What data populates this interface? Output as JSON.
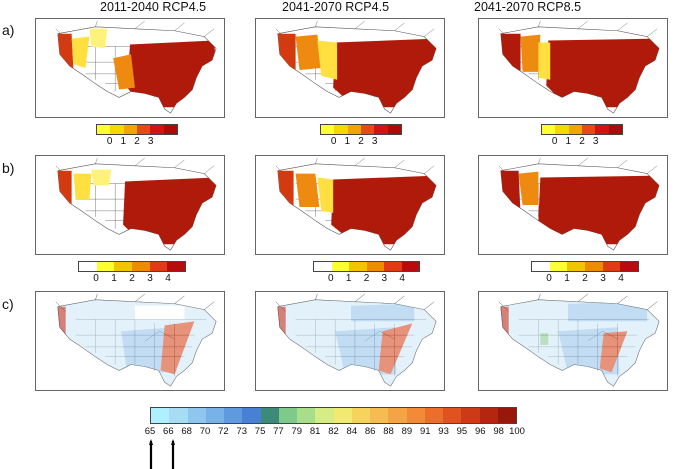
{
  "column_titles": [
    "2011-2040 RCP4.5",
    "2041-2070 RCP4.5",
    "2041-2070 RCP8.5"
  ],
  "row_labels": [
    "a)",
    "b)",
    "c)"
  ],
  "legend_a": {
    "ticks": [
      "0",
      "1",
      "2",
      "3"
    ],
    "colors": [
      "#ffff33",
      "#f5d800",
      "#f3a400",
      "#e84a14",
      "#d01414",
      "#a80c0c"
    ]
  },
  "legend_b": {
    "ticks": [
      "0",
      "1",
      "2",
      "3",
      "4"
    ],
    "colors": [
      "#ffffff",
      "#ffff33",
      "#f3c400",
      "#f08a00",
      "#e03c14",
      "#b80c0c"
    ]
  },
  "legend_c": {
    "ticks": [
      "65",
      "66",
      "68",
      "70",
      "72",
      "73",
      "75",
      "77",
      "79",
      "81",
      "82",
      "84",
      "86",
      "88",
      "89",
      "91",
      "93",
      "95",
      "96",
      "98",
      "100"
    ],
    "colors": [
      "#aef0ff",
      "#a8dcf4",
      "#8fc6ee",
      "#79b2e8",
      "#5f99df",
      "#4880d6",
      "#3d8a7a",
      "#7fc98a",
      "#a8dd8a",
      "#d6ec84",
      "#f2ea70",
      "#f6d45c",
      "#f6bc50",
      "#f4a443",
      "#f28a36",
      "#ec6e2a",
      "#e0521e",
      "#cc3a16",
      "#b4260f",
      "#9a160a"
    ]
  },
  "colors": {
    "map_dark_red": "#b01a0a",
    "map_red": "#d43a10",
    "map_orange": "#ee8a10",
    "map_yellow": "#ffe040",
    "map_light_yellow": "#fff27a",
    "map_light_blue": "#cde9f7",
    "map_mid_blue": "#8fc0ea",
    "state_lines": "#333333"
  }
}
